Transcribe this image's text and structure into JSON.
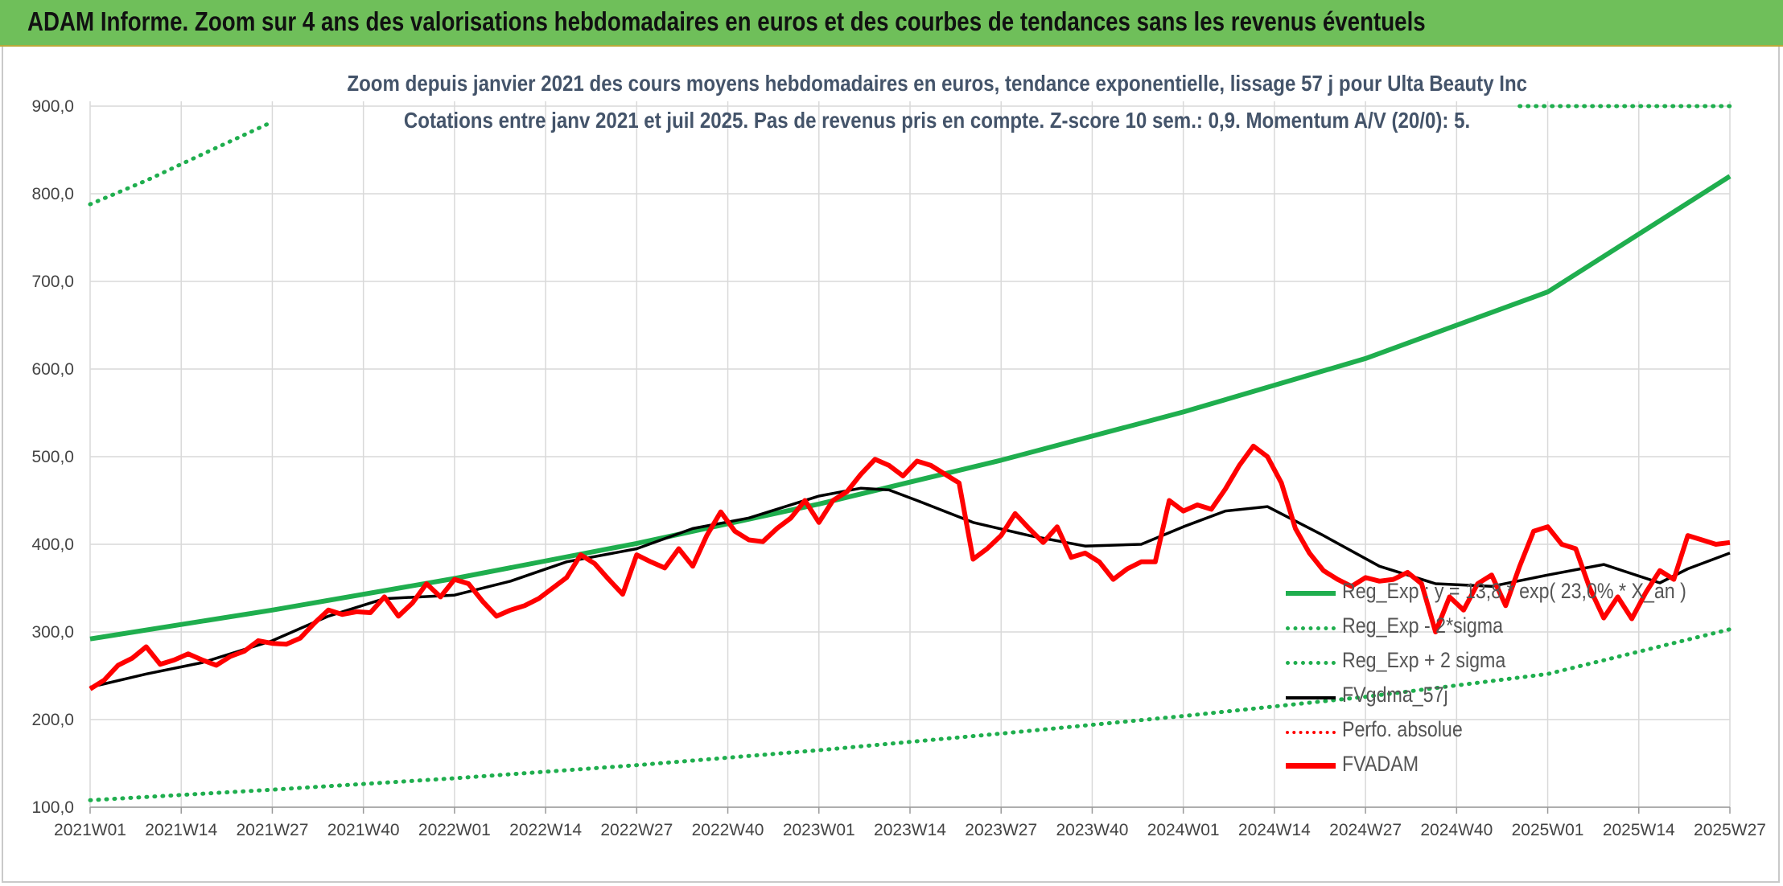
{
  "banner": {
    "title": "ADAM Informe. Zoom sur 4 ans des valorisations hebdomadaires en euros et des courbes de tendances sans les revenus éventuels"
  },
  "colors": {
    "banner_bg": "#6fbf5a",
    "reg_exp": "#1fae4e",
    "sigma": "#1fae4e",
    "fvgdma": "#000000",
    "perfo": "#ff0000",
    "fvadam": "#ff0000",
    "grid": "#d9d9d9",
    "subtitle": "#44546a"
  },
  "chart_data": {
    "type": "line",
    "title_line1": "Zoom depuis janvier 2021 des cours moyens hebdomadaires en euros, tendance exponentielle, lissage 57 j pour Ulta Beauty Inc",
    "title_line2": "Cotations entre janv 2021 et juil 2025. Pas de revenus pris en compte. Z-score 10 sem.: 0,9. Momentum A/V (20/0): 5.",
    "ylim": [
      100,
      900
    ],
    "y_ticks": [
      "100,0",
      "200,0",
      "300,0",
      "400,0",
      "500,0",
      "600,0",
      "700,0",
      "800,0",
      "900,0"
    ],
    "y_tick_values": [
      100,
      200,
      300,
      400,
      500,
      600,
      700,
      800,
      900
    ],
    "x_ticks": [
      "2021W01",
      "2021W14",
      "2021W27",
      "2021W40",
      "2022W01",
      "2022W14",
      "2022W27",
      "2022W40",
      "2023W01",
      "2023W14",
      "2023W27",
      "2023W40",
      "2024W01",
      "2024W14",
      "2024W27",
      "2024W40",
      "2025W01",
      "2025W14",
      "2025W27"
    ],
    "x_range_weeks": [
      0,
      234
    ],
    "grid": true,
    "legend_position": "bottom-right",
    "series": [
      {
        "name": "Reg_Exp : y = 13,8 * exp( 23,0% * X_an )",
        "style": "solid-thick",
        "x": [
          0,
          26,
          52,
          78,
          104,
          130,
          156,
          182,
          208,
          234
        ],
        "y": [
          292,
          325,
          361,
          401,
          446,
          496,
          551,
          612,
          688,
          820
        ]
      },
      {
        "name": "Reg_Exp - 2*sigma",
        "style": "dotted",
        "x": [
          0,
          26,
          52,
          78,
          104,
          130,
          156,
          182,
          208,
          234
        ],
        "y": [
          108,
          120,
          133,
          148,
          165,
          184,
          204,
          226,
          252,
          303
        ]
      },
      {
        "name": "Reg_Exp + 2 sigma",
        "style": "dotted",
        "segments": [
          {
            "x": [
              0,
              8,
              16,
              26
            ],
            "y": [
              788,
              815,
              845,
              882
            ]
          },
          {
            "x": [
              204,
              216,
              228,
              234
            ],
            "y": [
              900,
              900,
              900,
              900
            ]
          }
        ]
      },
      {
        "name": "FVgdma_57j",
        "style": "solid",
        "x": [
          0,
          8,
          16,
          26,
          34,
          42,
          52,
          60,
          68,
          78,
          86,
          94,
          104,
          110,
          114,
          118,
          126,
          134,
          142,
          150,
          156,
          162,
          168,
          176,
          184,
          192,
          200,
          208,
          216,
          224,
          228,
          234
        ],
        "y": [
          237,
          252,
          265,
          290,
          318,
          338,
          342,
          358,
          380,
          395,
          418,
          430,
          455,
          464,
          462,
          450,
          425,
          410,
          398,
          400,
          420,
          438,
          443,
          410,
          375,
          355,
          352,
          365,
          377,
          356,
          372,
          390
        ]
      },
      {
        "name": "Perfo. absolue",
        "style": "dotted-red",
        "x": [],
        "y": []
      },
      {
        "name": "FVADAM",
        "style": "solid-thick-red",
        "x": [
          0,
          2,
          4,
          6,
          8,
          10,
          12,
          14,
          16,
          18,
          20,
          22,
          24,
          26,
          28,
          30,
          32,
          34,
          36,
          38,
          40,
          42,
          44,
          46,
          48,
          50,
          52,
          54,
          56,
          58,
          60,
          62,
          64,
          66,
          68,
          70,
          72,
          74,
          76,
          78,
          80,
          82,
          84,
          86,
          88,
          90,
          92,
          94,
          96,
          98,
          100,
          102,
          104,
          106,
          108,
          110,
          112,
          114,
          116,
          118,
          120,
          122,
          124,
          126,
          128,
          130,
          132,
          134,
          136,
          138,
          140,
          142,
          144,
          146,
          148,
          150,
          152,
          154,
          156,
          158,
          160,
          162,
          164,
          166,
          168,
          170,
          172,
          174,
          176,
          178,
          180,
          182,
          184,
          186,
          188,
          190,
          192,
          194,
          196,
          198,
          200,
          202,
          204,
          206,
          208,
          210,
          212,
          214,
          216,
          218,
          220,
          222,
          224,
          226,
          228,
          230,
          232,
          234
        ],
        "y": [
          235,
          245,
          262,
          270,
          283,
          263,
          268,
          275,
          268,
          262,
          272,
          278,
          290,
          287,
          286,
          293,
          310,
          325,
          320,
          323,
          322,
          340,
          318,
          333,
          355,
          340,
          360,
          355,
          335,
          318,
          325,
          330,
          338,
          350,
          362,
          388,
          378,
          360,
          343,
          388,
          380,
          373,
          395,
          375,
          410,
          437,
          415,
          405,
          403,
          418,
          430,
          450,
          425,
          450,
          460,
          480,
          497,
          490,
          478,
          495,
          490,
          480,
          470,
          383,
          395,
          410,
          435,
          418,
          402,
          420,
          385,
          390,
          380,
          360,
          372,
          380,
          380,
          450,
          438,
          445,
          440,
          463,
          490,
          512,
          500,
          470,
          418,
          390,
          370,
          360,
          352,
          362,
          358,
          360,
          368,
          355,
          300,
          340,
          325,
          355,
          365,
          330,
          375,
          415,
          420,
          400,
          395,
          350,
          316,
          340,
          315,
          345,
          370,
          360,
          410,
          405,
          400,
          402
        ]
      }
    ]
  },
  "legend": [
    {
      "label": "Reg_Exp : y = 13,8 * exp( 23,0% * X_an )",
      "kind": "solid",
      "color": "#1fae4e"
    },
    {
      "label": "Reg_Exp - 2*sigma",
      "kind": "dotted",
      "color": "#1fae4e"
    },
    {
      "label": "Reg_Exp + 2 sigma",
      "kind": "dotted",
      "color": "#1fae4e"
    },
    {
      "label": "FVgdma_57j",
      "kind": "solid",
      "color": "#000000"
    },
    {
      "label": "Perfo. absolue",
      "kind": "dotted",
      "color": "#ff0000"
    },
    {
      "label": "FVADAM",
      "kind": "solid",
      "color": "#ff0000"
    }
  ]
}
